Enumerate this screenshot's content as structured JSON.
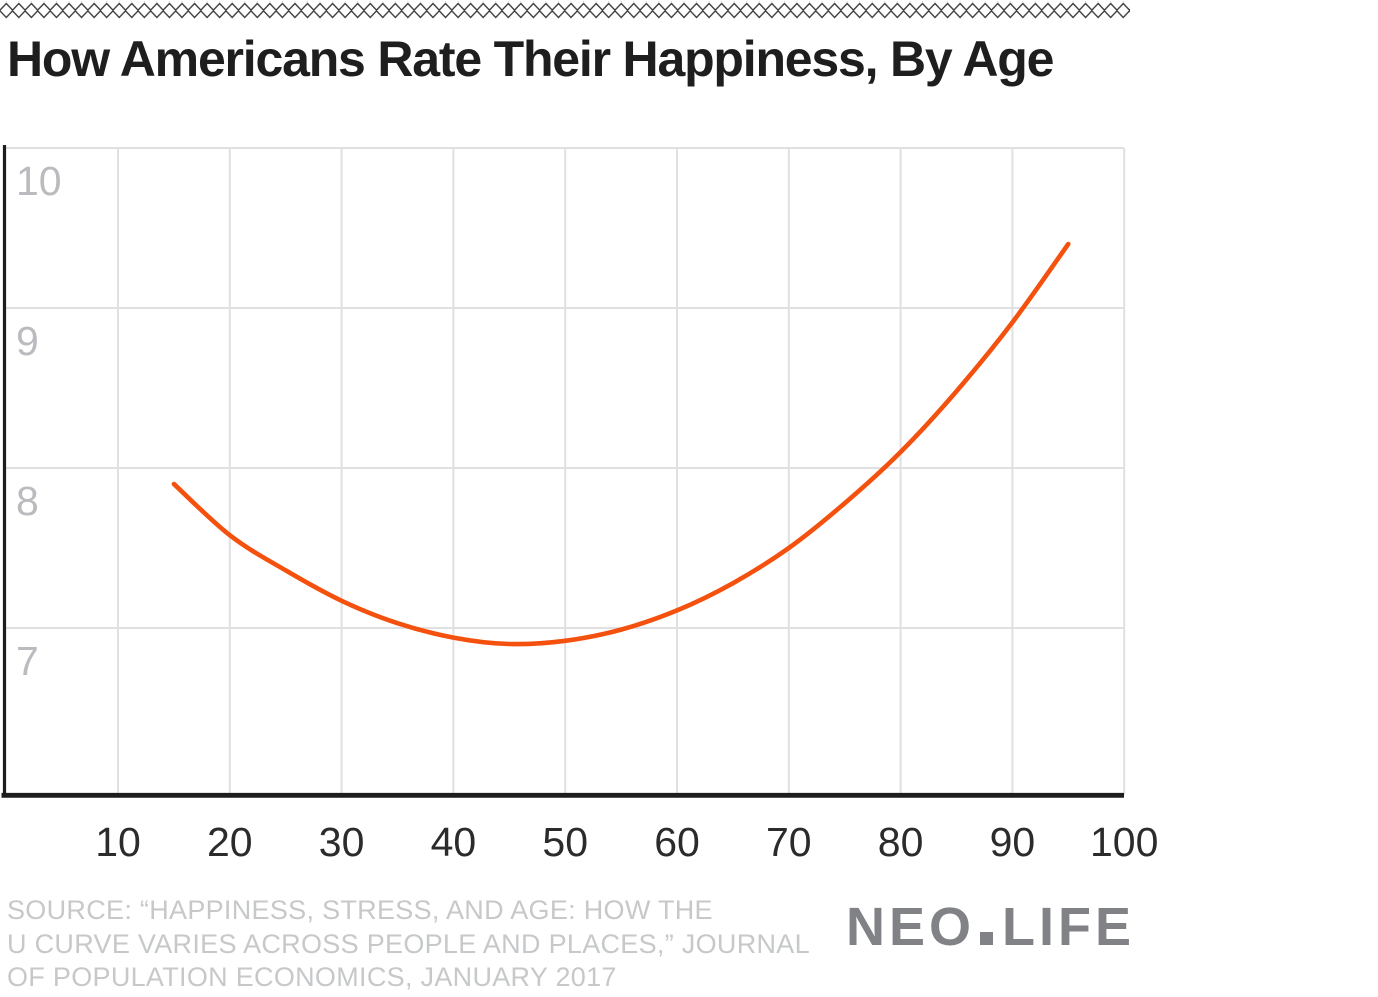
{
  "header": {
    "title": "How Americans Rate Their Happiness, By Age"
  },
  "chart_data": {
    "type": "line",
    "title": "How Americans Rate Their Happiness, By Age",
    "series": [
      {
        "name": "happiness-rating-by-age",
        "x": [
          15,
          20,
          25,
          30,
          35,
          40,
          45,
          50,
          55,
          60,
          65,
          70,
          75,
          80,
          85,
          90,
          95
        ],
        "values": [
          7.9,
          7.58,
          7.36,
          7.17,
          7.03,
          6.94,
          6.9,
          6.92,
          6.99,
          7.11,
          7.28,
          7.5,
          7.78,
          8.1,
          8.48,
          8.91,
          9.4
        ]
      }
    ],
    "xlabel": "",
    "ylabel": "",
    "x_ticks": [
      10,
      20,
      30,
      40,
      50,
      60,
      70,
      80,
      90,
      100
    ],
    "y_ticks": [
      10,
      9,
      8,
      7
    ],
    "xlim": [
      0,
      100
    ],
    "ylim": [
      6,
      10
    ],
    "grid": true,
    "legend": "none",
    "curve_minimum": {
      "x": 46,
      "value": 6.9
    }
  },
  "footer": {
    "source_lines": [
      "SOURCE: “HAPPINESS, STRESS, AND AGE: HOW THE",
      "U CURVE VARIES ACROSS PEOPLE AND PLACES,” JOURNAL",
      "OF POPULATION ECONOMICS, JANUARY 2017"
    ],
    "logo": {
      "left": "NEO",
      "dot": "square-dot",
      "right": "LIFE"
    }
  },
  "colors": {
    "background": "#ffffff",
    "title": "#1e1e1e",
    "curve": "#f4500e",
    "grid": "#e0e0e2",
    "axis": "#1d1d1d",
    "ytick": "#b9bbbe",
    "xtick": "#2b2b2b",
    "source": "#c6c8ca",
    "logo": "#808285",
    "pattern": "#3d3d3d"
  }
}
